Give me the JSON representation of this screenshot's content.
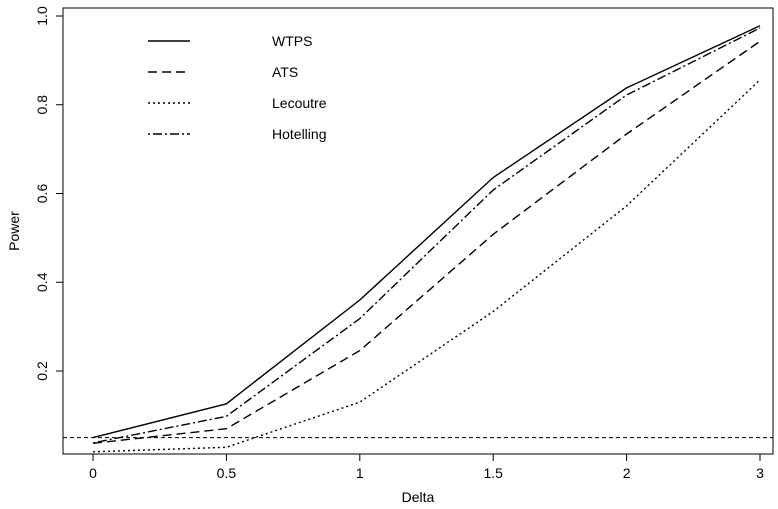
{
  "chart_data": {
    "type": "line",
    "xlabel": "Delta",
    "ylabel": "Power",
    "x": [
      0,
      0.5,
      1,
      1.5,
      2,
      3
    ],
    "xtick_labels": [
      "0",
      "0.5",
      "1",
      "1.5",
      "2",
      "3"
    ],
    "ytick_values": [
      0.2,
      0.4,
      0.6,
      0.8,
      1.0
    ],
    "ytick_labels": [
      "0.2",
      "0.4",
      "0.6",
      "0.8",
      "1.0"
    ],
    "ylim": [
      0.02,
      1.0
    ],
    "grid": false,
    "legend_position": "top-left",
    "reference_line": {
      "y": 0.05,
      "style": "dashed"
    },
    "series": [
      {
        "name": "WTPS",
        "style": "solid",
        "values": [
          0.05,
          0.126,
          0.36,
          0.636,
          0.838,
          0.978
        ]
      },
      {
        "name": "ATS",
        "style": "dashed",
        "values": [
          0.037,
          0.07,
          0.246,
          0.508,
          0.734,
          0.943
        ]
      },
      {
        "name": "Lecoutre",
        "style": "dotted",
        "values": [
          0.018,
          0.028,
          0.13,
          0.334,
          0.572,
          0.856
        ]
      },
      {
        "name": "Hotelling",
        "style": "dotdash",
        "values": [
          0.038,
          0.098,
          0.318,
          0.608,
          0.822,
          0.973
        ]
      }
    ]
  }
}
